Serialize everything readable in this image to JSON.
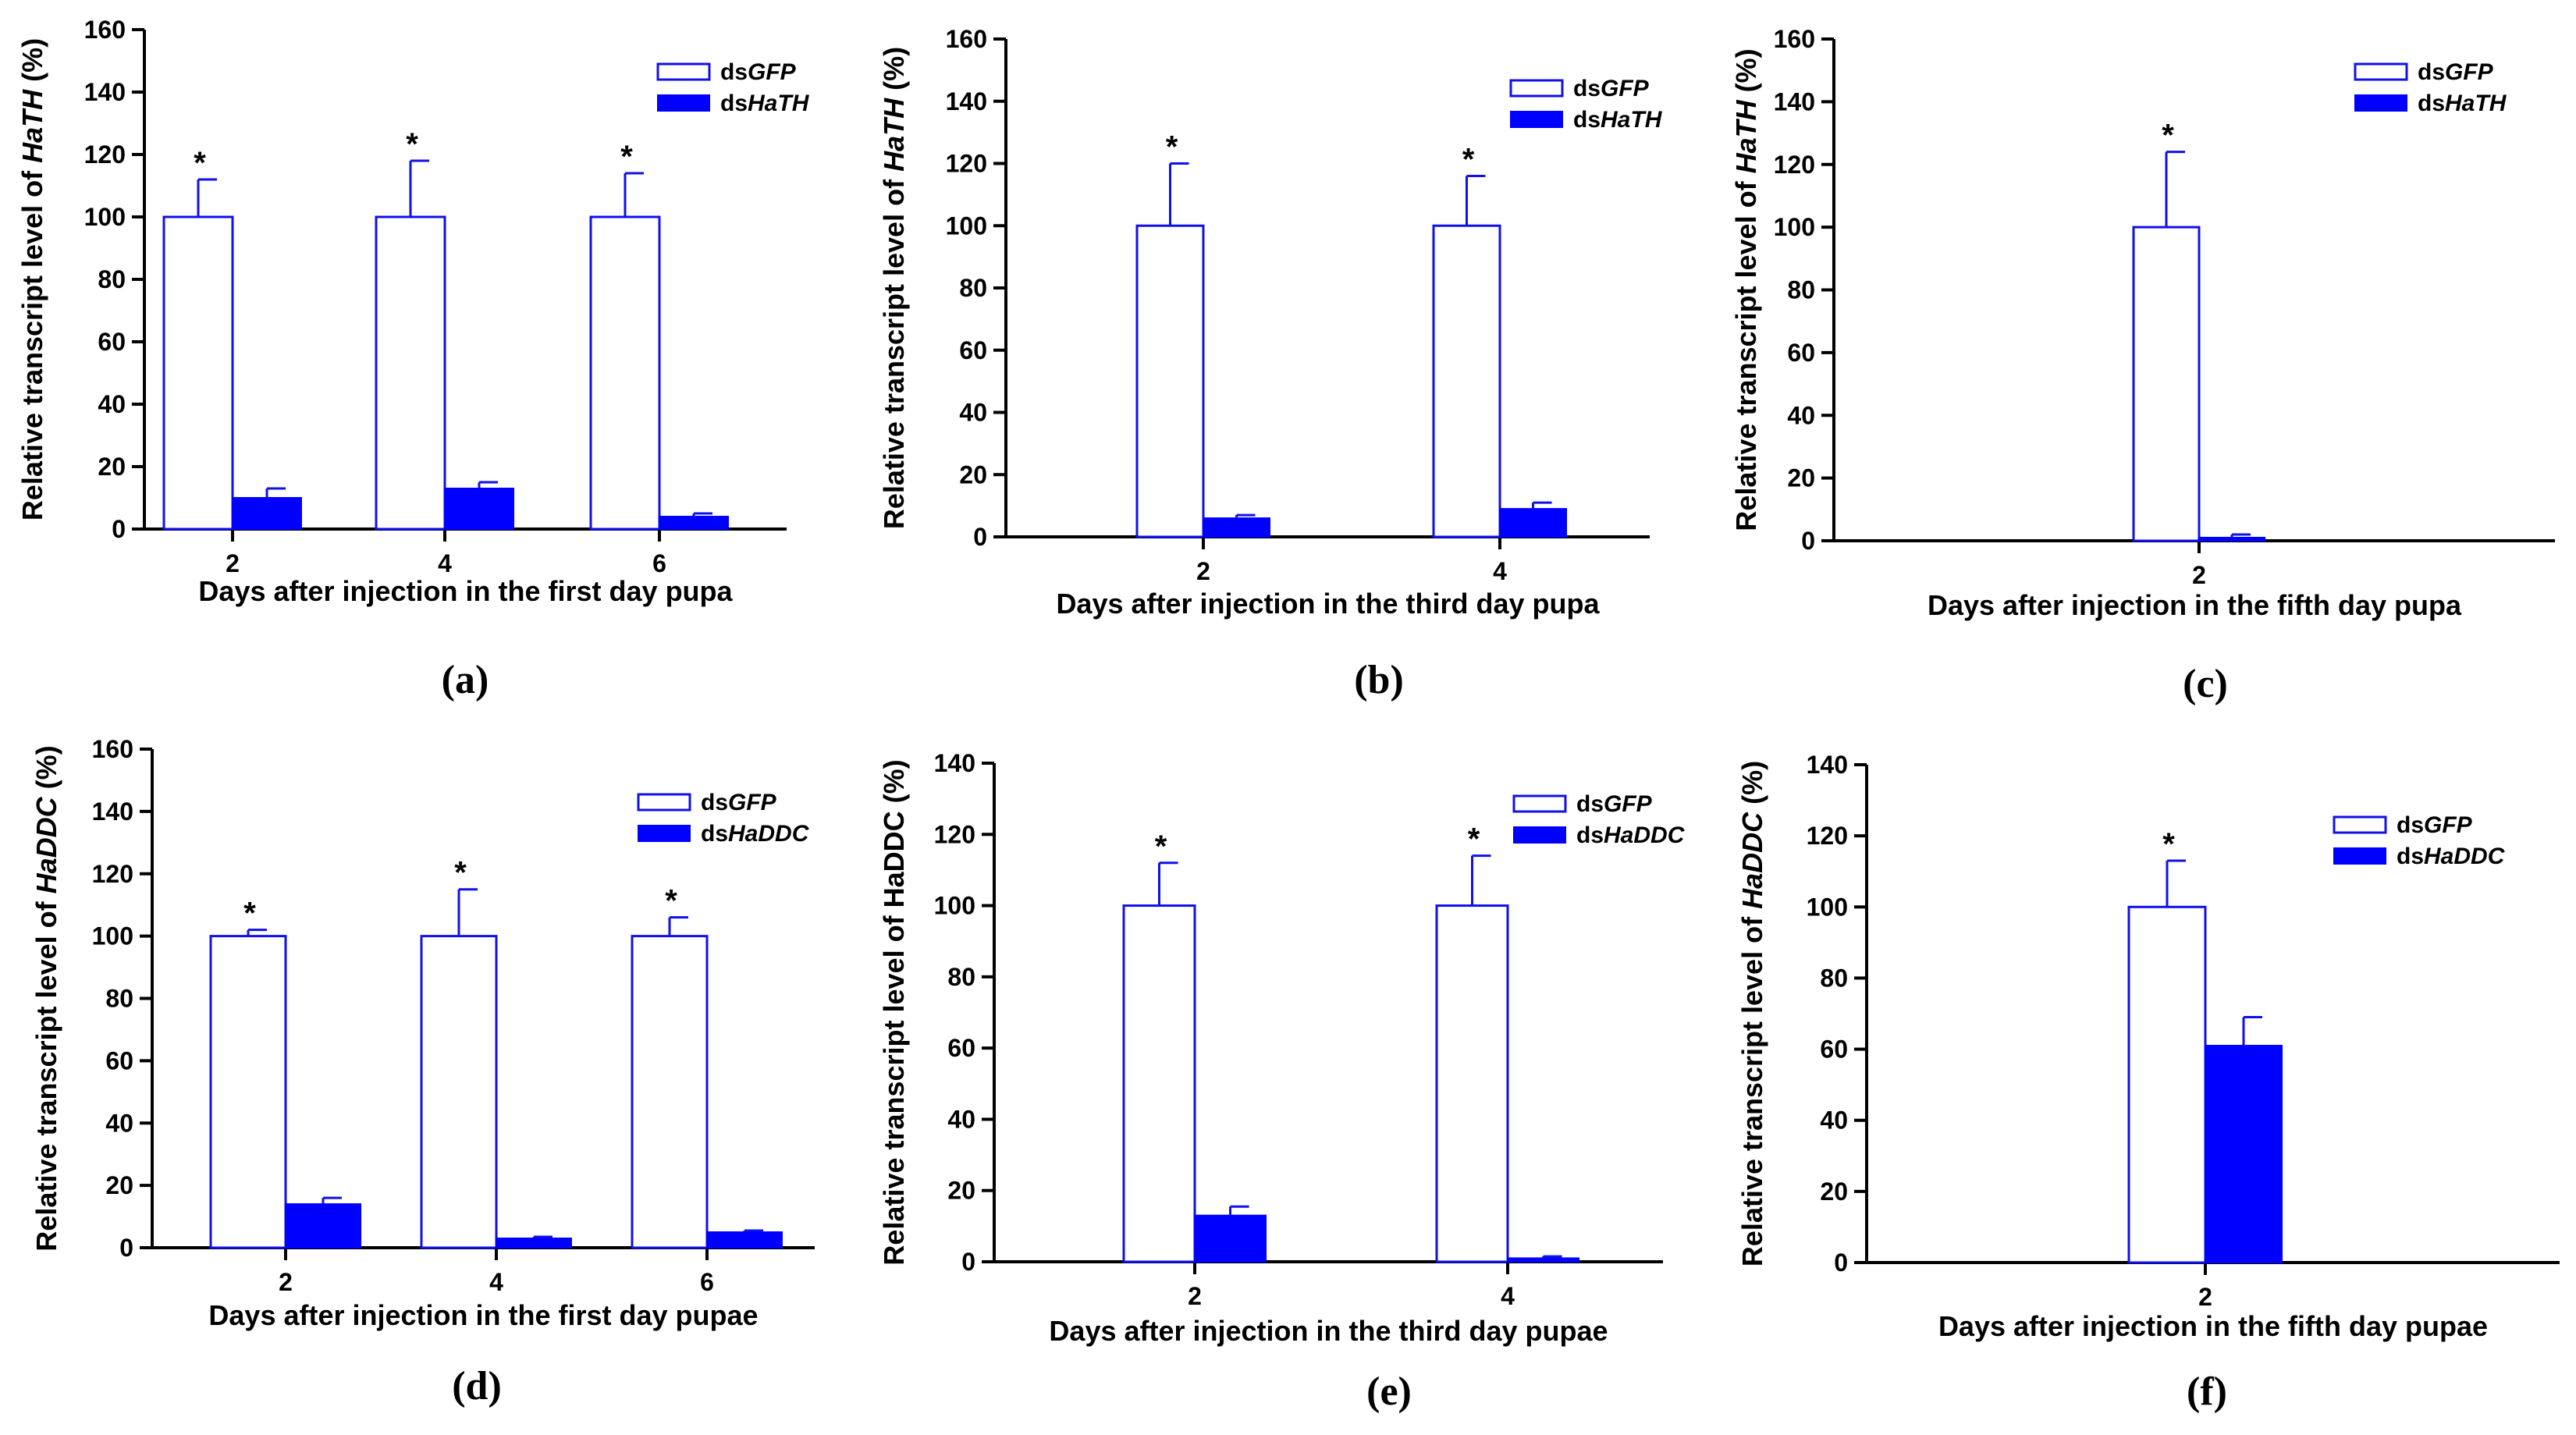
{
  "colors": {
    "axis": "#000000",
    "open_bar_stroke": "#1010e8",
    "filled_bar": "#0000ff",
    "background": "#ffffff"
  },
  "chart_data": [
    {
      "panel": "(a)",
      "type": "bar",
      "xlabel": "Days after injection in the first day pupa",
      "ylabel_parts": [
        {
          "t": "Relative transcript level of ",
          "i": false
        },
        {
          "t": "HaTH",
          "i": true
        },
        {
          "t": " (%)",
          "i": false
        }
      ],
      "ylim": [
        0,
        160
      ],
      "yticks": [
        0,
        20,
        40,
        60,
        80,
        100,
        120,
        140,
        160
      ],
      "categories": [
        "2",
        "4",
        "6"
      ],
      "series": [
        {
          "name_parts": [
            {
              "t": "ds",
              "i": false
            },
            {
              "t": "GFP",
              "i": true
            }
          ],
          "style": "open",
          "values": [
            100,
            100,
            100
          ],
          "errors": [
            12,
            18,
            14
          ]
        },
        {
          "name_parts": [
            {
              "t": "ds",
              "i": false
            },
            {
              "t": "HaTH",
              "i": true
            }
          ],
          "style": "filled",
          "values": [
            10,
            13,
            4
          ],
          "errors": [
            3,
            2,
            1
          ]
        }
      ],
      "significance": [
        "*",
        "*",
        "*"
      ]
    },
    {
      "panel": "(b)",
      "type": "bar",
      "xlabel": "Days after injection in the third day pupa",
      "ylabel_parts": [
        {
          "t": "Relative transcript level of ",
          "i": false
        },
        {
          "t": "HaTH",
          "i": true
        },
        {
          "t": " (%)",
          "i": false
        }
      ],
      "ylim": [
        0,
        160
      ],
      "yticks": [
        0,
        20,
        40,
        60,
        80,
        100,
        120,
        140,
        160
      ],
      "categories": [
        "2",
        "4"
      ],
      "series": [
        {
          "name_parts": [
            {
              "t": "ds",
              "i": false
            },
            {
              "t": "GFP",
              "i": true
            }
          ],
          "style": "open",
          "values": [
            100,
            100
          ],
          "errors": [
            20,
            16
          ]
        },
        {
          "name_parts": [
            {
              "t": "ds",
              "i": false
            },
            {
              "t": "HaTH",
              "i": true
            }
          ],
          "style": "filled",
          "values": [
            6,
            9
          ],
          "errors": [
            1,
            2
          ]
        }
      ],
      "significance": [
        "*",
        "*"
      ]
    },
    {
      "panel": "(c)",
      "type": "bar",
      "xlabel": "Days after injection in the fifth day pupa",
      "ylabel_parts": [
        {
          "t": "Relative transcript level of ",
          "i": false
        },
        {
          "t": "HaTH",
          "i": true
        },
        {
          "t": " (%)",
          "i": false
        }
      ],
      "ylim": [
        0,
        160
      ],
      "yticks": [
        0,
        20,
        40,
        60,
        80,
        100,
        120,
        140,
        160
      ],
      "categories": [
        "2"
      ],
      "series": [
        {
          "name_parts": [
            {
              "t": "ds",
              "i": false
            },
            {
              "t": "GFP",
              "i": true
            }
          ],
          "style": "open",
          "values": [
            100
          ],
          "errors": [
            24
          ]
        },
        {
          "name_parts": [
            {
              "t": "ds",
              "i": false
            },
            {
              "t": "HaTH",
              "i": true
            }
          ],
          "style": "filled",
          "values": [
            1
          ],
          "errors": [
            1
          ]
        }
      ],
      "significance": [
        "*"
      ]
    },
    {
      "panel": "(d)",
      "type": "bar",
      "xlabel": "Days after injection in the first day pupae",
      "ylabel_parts": [
        {
          "t": "Relative transcript level of ",
          "i": false
        },
        {
          "t": "HaDDC",
          "i": true
        },
        {
          "t": " (%)",
          "i": false
        }
      ],
      "ylim": [
        0,
        160
      ],
      "yticks": [
        0,
        20,
        40,
        60,
        80,
        100,
        120,
        140,
        160
      ],
      "categories": [
        "2",
        "4",
        "6"
      ],
      "series": [
        {
          "name_parts": [
            {
              "t": "ds",
              "i": false
            },
            {
              "t": "GFP",
              "i": true
            }
          ],
          "style": "open",
          "values": [
            100,
            100,
            100
          ],
          "errors": [
            2,
            15,
            6
          ]
        },
        {
          "name_parts": [
            {
              "t": "ds",
              "i": false
            },
            {
              "t": "HaDDC",
              "i": true
            }
          ],
          "style": "filled",
          "values": [
            14,
            3,
            5
          ],
          "errors": [
            2,
            0.5,
            0.5
          ]
        }
      ],
      "significance": [
        "*",
        "*",
        "*"
      ]
    },
    {
      "panel": "(e)",
      "type": "bar",
      "xlabel": "Days after injection in the third day pupae",
      "ylabel_parts": [
        {
          "t": "Relative transcript level of HaDDC (%)",
          "i": false
        }
      ],
      "ylim": [
        0,
        140
      ],
      "yticks": [
        0,
        20,
        40,
        60,
        80,
        100,
        120,
        140
      ],
      "categories": [
        "2",
        "4"
      ],
      "series": [
        {
          "name_parts": [
            {
              "t": "ds",
              "i": false
            },
            {
              "t": "GFP",
              "i": true
            }
          ],
          "style": "open",
          "values": [
            100,
            100
          ],
          "errors": [
            12,
            14
          ]
        },
        {
          "name_parts": [
            {
              "t": "ds",
              "i": false
            },
            {
              "t": "HaDDC",
              "i": true
            }
          ],
          "style": "filled",
          "values": [
            13,
            1
          ],
          "errors": [
            2.5,
            0.5
          ]
        }
      ],
      "significance": [
        "*",
        "*"
      ]
    },
    {
      "panel": "(f)",
      "type": "bar",
      "xlabel": "Days after injection in the fifth day pupae",
      "ylabel_parts": [
        {
          "t": "Relative transcript level of ",
          "i": false
        },
        {
          "t": "HaDDC",
          "i": true
        },
        {
          "t": " (%)",
          "i": false
        }
      ],
      "ylim": [
        0,
        140
      ],
      "yticks": [
        0,
        20,
        40,
        60,
        80,
        100,
        120,
        140
      ],
      "categories": [
        "2"
      ],
      "series": [
        {
          "name_parts": [
            {
              "t": "ds",
              "i": false
            },
            {
              "t": "GFP",
              "i": true
            }
          ],
          "style": "open",
          "values": [
            100
          ],
          "errors": [
            13
          ]
        },
        {
          "name_parts": [
            {
              "t": "ds",
              "i": false
            },
            {
              "t": "HaDDC",
              "i": true
            }
          ],
          "style": "filled",
          "values": [
            61
          ],
          "errors": [
            8
          ]
        }
      ],
      "significance": [
        "*"
      ]
    }
  ]
}
